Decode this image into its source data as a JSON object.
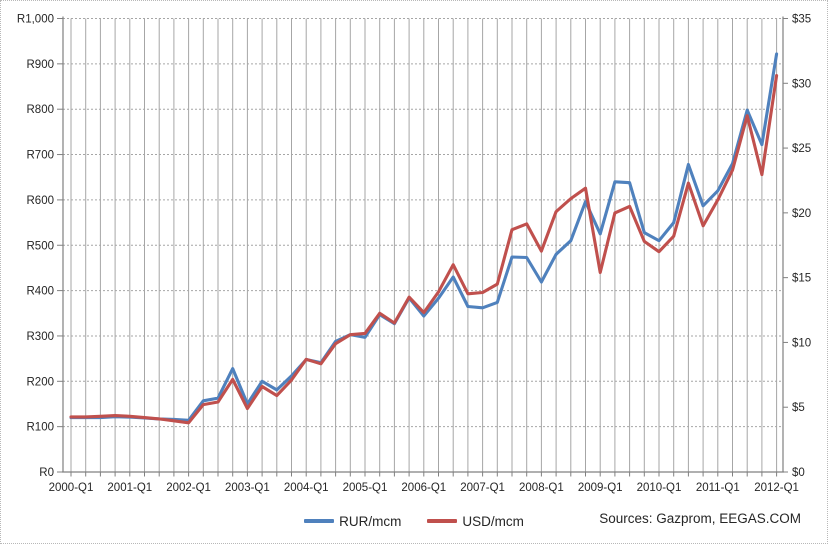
{
  "source_note": "Sources: Gazprom, EEGAS.COM",
  "legend": {
    "items": [
      {
        "label": "RUR/mcm",
        "color": "#4F81BD"
      },
      {
        "label": "USD/mcm",
        "color": "#C0504D"
      }
    ]
  },
  "chart_data": {
    "type": "line",
    "title": "",
    "grid": {
      "vertical": "every quarter",
      "horizontal": "every 100 RUR"
    },
    "legend_position": "bottom-center",
    "x_first": "2000-Q1",
    "x_last": "2012-Q1",
    "x_points": 49,
    "x_tick_labels": [
      "2000-Q1",
      "2001-Q1",
      "2002-Q1",
      "2003-Q1",
      "2004-Q1",
      "2005-Q1",
      "2006-Q1",
      "2007-Q1",
      "2008-Q1",
      "2009-Q1",
      "2010-Q1",
      "2011-Q1",
      "2012-Q1"
    ],
    "left_axis": {
      "min": 0,
      "max": 1000,
      "step": 100,
      "labels": [
        "R0",
        "R100",
        "R200",
        "R300",
        "R400",
        "R500",
        "R600",
        "R700",
        "R800",
        "R900",
        "R1,000"
      ]
    },
    "right_axis": {
      "min": 0,
      "max": 35,
      "step": 5,
      "labels": [
        "$0",
        "$5",
        "$10",
        "$15",
        "$20",
        "$25",
        "$30",
        "$35"
      ]
    },
    "series": [
      {
        "name": "RUR/mcm",
        "axis": "left",
        "color": "#4F81BD",
        "values": [
          120,
          120,
          120,
          122,
          121,
          119,
          117,
          116,
          114,
          157,
          163,
          228,
          150,
          200,
          181,
          212,
          248,
          241,
          288,
          303,
          297,
          347,
          327,
          384,
          344,
          383,
          430,
          365,
          362,
          374,
          474,
          473,
          419,
          480,
          510,
          596,
          525,
          640,
          638,
          528,
          510,
          550,
          678,
          587,
          620,
          680,
          798,
          722,
          922
        ]
      },
      {
        "name": "USD/mcm",
        "axis": "right",
        "color": "#C0504D",
        "values": [
          4.25,
          4.25,
          4.3,
          4.35,
          4.3,
          4.2,
          4.1,
          3.95,
          3.8,
          5.2,
          5.4,
          7.15,
          4.9,
          6.6,
          5.9,
          7.1,
          8.7,
          8.35,
          9.9,
          10.6,
          10.7,
          12.25,
          11.5,
          13.5,
          12.3,
          13.9,
          16.0,
          13.75,
          13.85,
          14.5,
          18.7,
          19.15,
          17.05,
          20.1,
          21.1,
          21.9,
          15.4,
          20.0,
          20.5,
          17.8,
          17.0,
          18.2,
          22.3,
          19.0,
          21.0,
          23.3,
          27.5,
          22.95,
          30.6
        ]
      }
    ],
    "axis_color": "#808080",
    "gridline_color": "#a6a6a6",
    "tick_text_color": "#262626"
  }
}
